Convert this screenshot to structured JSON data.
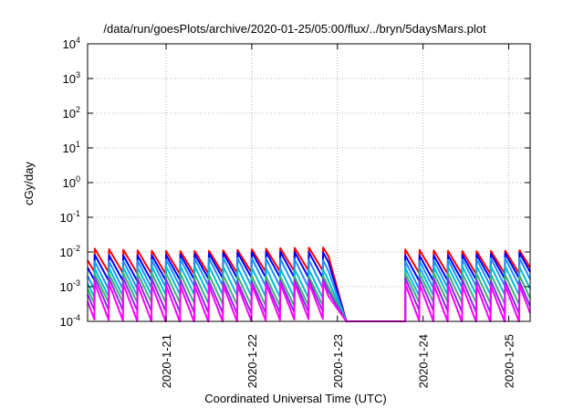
{
  "chart_data": {
    "type": "line",
    "title": "/data/run/goesPlots/archive/2020-01-25/05:00/flux/../bryn/5daysMars.plot",
    "xlabel": "Coordinated Universal Time (UTC)",
    "ylabel": "cGy/day",
    "yscale": "log",
    "ylim": [
      0.0001,
      10000
    ],
    "xlim": [
      "2020-01-20T02:00",
      "2020-01-25T06:00"
    ],
    "grid": true,
    "x_ticks": [
      "2020-1-21",
      "2020-1-22",
      "2020-1-23",
      "2020-1-24",
      "2020-1-25"
    ],
    "y_ticks": [
      {
        "base": "10",
        "exp": "4"
      },
      {
        "base": "10",
        "exp": "3"
      },
      {
        "base": "10",
        "exp": "2"
      },
      {
        "base": "10",
        "exp": "1"
      },
      {
        "base": "10",
        "exp": "0"
      },
      {
        "base": "10",
        "exp": "-1"
      },
      {
        "base": "10",
        "exp": "-2"
      },
      {
        "base": "10",
        "exp": "-3"
      },
      {
        "base": "10",
        "exp": "-4"
      }
    ],
    "pattern": {
      "period_hours": 4,
      "active_segments": [
        {
          "start": "2020-01-20T02:00",
          "end": "2020-01-22T21:30"
        },
        {
          "start": "2020-01-23T19:00",
          "end": "2020-01-25T06:00"
        }
      ],
      "gap_values": [
        {
          "x": "2020-01-23T03:00",
          "y": 0.0001
        },
        {
          "x": "2020-01-23T19:00",
          "y": 0.0001
        }
      ]
    },
    "series": [
      {
        "color": "#ff0000",
        "peak": 0.012,
        "trough": 0.0025
      },
      {
        "color": "#0000ff",
        "peak": 0.009,
        "trough": 0.0016
      },
      {
        "color": "#1e90ff",
        "peak": 0.006,
        "trough": 0.0009
      },
      {
        "color": "#00bcd4",
        "peak": 0.0035,
        "trough": 0.0005
      },
      {
        "color": "#3cb371",
        "peak": 0.0022,
        "trough": 0.0003
      },
      {
        "color": "#8a2be2",
        "peak": 0.0016,
        "trough": 0.00018
      },
      {
        "color": "#ff00ff",
        "peak": 0.0012,
        "trough": 0.0001
      }
    ]
  }
}
